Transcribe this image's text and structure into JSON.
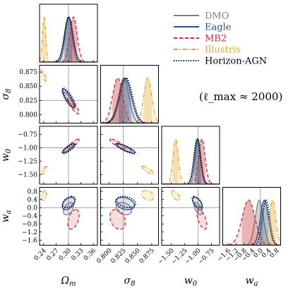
{
  "chart_data": {
    "type": "corner",
    "parameters": [
      {
        "key": "Om",
        "label": "Ω_m",
        "truth": 0.3,
        "ticks": [
          0.24,
          0.27,
          0.3,
          0.33,
          0.36
        ],
        "tick_labels": [
          "0.24",
          "0.27",
          "0.30",
          "0.33",
          "0.36"
        ],
        "range": [
          0.23,
          0.37
        ]
      },
      {
        "key": "s8",
        "label": "σ_8",
        "truth": 0.825,
        "ticks": [
          0.8,
          0.825,
          0.85,
          0.875
        ],
        "tick_labels": [
          "0.800",
          "0.825",
          "0.850",
          "0.875"
        ],
        "range": [
          0.785,
          0.887
        ]
      },
      {
        "key": "w0",
        "label": "w_0",
        "truth": -1.0,
        "ticks": [
          -1.5,
          -1.25,
          -1.0,
          -0.75
        ],
        "tick_labels": [
          "−1.50",
          "−1.25",
          "−1.00",
          "−0.75"
        ],
        "range": [
          -1.68,
          -0.6
        ]
      },
      {
        "key": "wa",
        "label": "w_a",
        "truth": 0.0,
        "ticks": [
          -1.6,
          -1.2,
          -0.8,
          -0.4,
          0.0,
          0.4,
          0.8
        ],
        "tick_labels": [
          "−1.6",
          "−1.2",
          "−0.8",
          "−0.4",
          "0.0",
          "0.4",
          "0.8"
        ],
        "range": [
          -1.85,
          1.0
        ]
      }
    ],
    "series": [
      {
        "name": "DMO",
        "color": "#808080",
        "dash": "solid",
        "fill": true,
        "mean": {
          "Om": 0.3,
          "s8": 0.826,
          "w0": -1.0,
          "wa": -0.05
        },
        "sigma": {
          "Om": 0.008,
          "s8": 0.009,
          "w0": 0.05,
          "wa": 0.2
        }
      },
      {
        "name": "Eagle",
        "color": "#2b4f8f",
        "dash": "solid",
        "fill": true,
        "mean": {
          "Om": 0.3,
          "s8": 0.828,
          "w0": -1.01,
          "wa": 0.2
        },
        "sigma": {
          "Om": 0.01,
          "s8": 0.011,
          "w0": 0.06,
          "wa": 0.2
        }
      },
      {
        "name": "MB2",
        "color": "#c8323c",
        "dash": "dashed",
        "fill": true,
        "mean": {
          "Om": 0.312,
          "s8": 0.815,
          "w0": -0.93,
          "wa": -0.58
        },
        "sigma": {
          "Om": 0.009,
          "s8": 0.009,
          "w0": 0.06,
          "wa": 0.32
        }
      },
      {
        "name": "Illustris",
        "color": "#e3a826",
        "dash": "dashdot",
        "fill": true,
        "mean": {
          "Om": 0.241,
          "s8": 0.868,
          "w0": -1.42,
          "wa": 0.6
        },
        "sigma": {
          "Om": 0.004,
          "s8": 0.007,
          "w0": 0.05,
          "wa": 0.16
        }
      },
      {
        "name": "Horizon-AGN",
        "color": "#000000",
        "dash": "dotted",
        "fill": false,
        "mean": {
          "Om": 0.301,
          "s8": 0.83,
          "w0": -1.02,
          "wa": 0.28
        },
        "sigma": {
          "Om": 0.01,
          "s8": 0.011,
          "w0": 0.06,
          "wa": 0.18
        }
      }
    ],
    "correlations": {
      "Om_s8": -0.85,
      "Om_w0": 0.85,
      "Om_wa": 0.45,
      "s8_w0": -0.85,
      "s8_wa": -0.3,
      "w0_wa": -0.6
    },
    "annotation": "(ℓ_max ≈ 2000)",
    "legend_position": "top-right"
  }
}
